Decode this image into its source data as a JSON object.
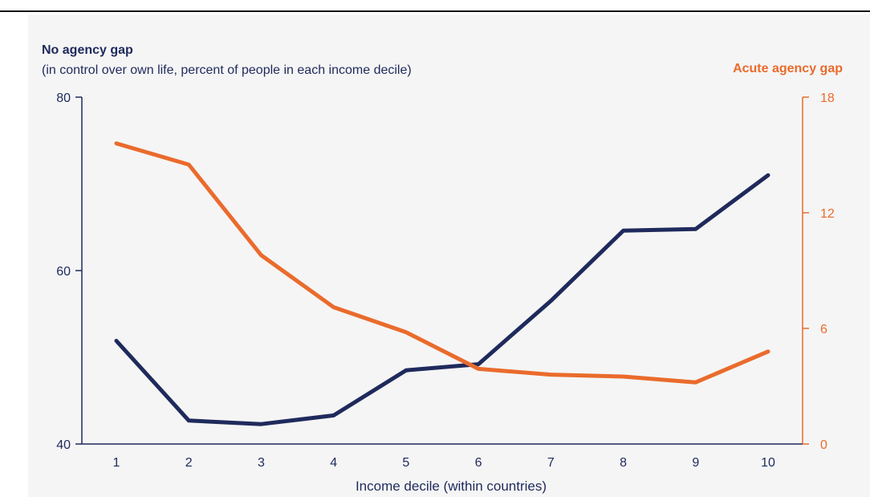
{
  "chart_data": {
    "type": "line",
    "xlabel": "Income decile (within countries)",
    "left_axis": {
      "title": "No agency gap",
      "subtitle": "(in control over own life, percent of people in each income decile)",
      "ylim": [
        40,
        80
      ],
      "ticks": [
        "40",
        "60",
        "80"
      ]
    },
    "right_axis": {
      "title": "Acute agency gap",
      "ylim": [
        0,
        18
      ],
      "ticks": [
        "0",
        "6",
        "12",
        "18"
      ]
    },
    "categories": [
      "1",
      "2",
      "3",
      "4",
      "5",
      "6",
      "7",
      "8",
      "9",
      "10"
    ],
    "series": [
      {
        "name": "No agency gap",
        "axis": "left",
        "color": "#1f2a5c",
        "values": [
          51.9,
          42.7,
          42.3,
          43.3,
          48.5,
          49.2,
          56.5,
          64.6,
          64.8,
          71.0
        ]
      },
      {
        "name": "Acute agency gap",
        "axis": "right",
        "color": "#ea6b2c",
        "values": [
          15.6,
          14.5,
          9.8,
          7.1,
          5.8,
          3.9,
          3.6,
          3.5,
          3.2,
          4.8
        ]
      }
    ],
    "grid": false
  },
  "colors": {
    "left_axis": "#1f2a5c",
    "right_axis": "#ea6b2c",
    "background": "#f5f5f5"
  }
}
